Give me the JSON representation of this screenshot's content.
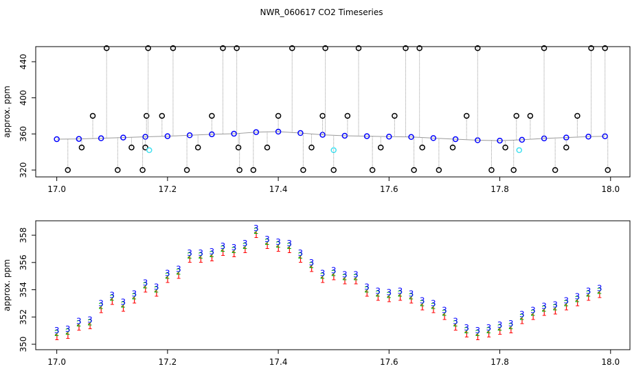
{
  "chart_data": [
    {
      "type": "scatter",
      "title": "NWR_060617  CO2 Timeseries",
      "y_label": "approx. ppm",
      "xlim": [
        16.962,
        18.035
      ],
      "xticks": [
        {
          "value": 17,
          "label": "17.0"
        },
        17.2,
        17.4,
        17.6,
        17.8,
        {
          "value": 18,
          "label": "18.0"
        }
      ],
      "ylim": [
        312.4,
        456.7
      ],
      "yticks": [
        320,
        360,
        400,
        440
      ],
      "series": [
        {
          "color": "#0000ff",
          "marker": "circle",
          "line": true,
          "x": [
            17.0,
            17.04,
            17.08,
            17.12,
            17.16,
            17.2,
            17.24,
            17.28,
            17.32,
            17.36,
            17.4,
            17.44,
            17.48,
            17.52,
            17.56,
            17.6,
            17.64,
            17.68,
            17.72,
            17.76,
            17.8,
            17.84,
            17.88,
            17.92,
            17.96,
            17.99
          ],
          "values": [
            354.2,
            354.5,
            355.2,
            356.0,
            356.8,
            357.5,
            358.5,
            359.6,
            360.2,
            362.0,
            362.5,
            361.0,
            359.0,
            358.0,
            357.5,
            357.0,
            356.6,
            355.4,
            354.2,
            353.0,
            352.6,
            353.5,
            355.0,
            356.0,
            357.0,
            357.4
          ]
        },
        {
          "color": "#000000",
          "marker": "circle",
          "drop_lines": true,
          "x": [
            17.02,
            17.045,
            17.065,
            17.09,
            17.11,
            17.135,
            17.155,
            17.16,
            17.162,
            17.165,
            17.19,
            17.21,
            17.235,
            17.255,
            17.28,
            17.3,
            17.325,
            17.328,
            17.33,
            17.355,
            17.38,
            17.4,
            17.425,
            17.445,
            17.46,
            17.48,
            17.485,
            17.5,
            17.525,
            17.545,
            17.57,
            17.585,
            17.61,
            17.63,
            17.645,
            17.655,
            17.66,
            17.69,
            17.715,
            17.74,
            17.76,
            17.785,
            17.81,
            17.825,
            17.83,
            17.855,
            17.88,
            17.9,
            17.92,
            17.94,
            17.965,
            17.99,
            17.995
          ],
          "values": [
            320,
            345,
            380,
            455,
            320,
            345,
            320,
            345,
            380,
            455,
            380,
            455,
            320,
            345,
            380,
            455,
            455,
            345,
            320,
            320,
            345,
            380,
            455,
            320,
            345,
            380,
            455,
            320,
            380,
            455,
            320,
            345,
            380,
            455,
            320,
            455,
            345,
            320,
            345,
            380,
            455,
            320,
            345,
            320,
            380,
            380,
            455,
            320,
            345,
            380,
            455,
            455,
            320
          ]
        },
        {
          "color": "#40e0f0",
          "marker": "circle",
          "x": [
            17.167,
            17.5,
            17.835
          ],
          "values": [
            342,
            342,
            342
          ]
        }
      ]
    },
    {
      "type": "scatter",
      "y_label": "approx. ppm",
      "xlim": [
        16.962,
        18.035
      ],
      "xticks": [
        {
          "value": 17,
          "label": "17.0"
        },
        17.2,
        17.4,
        17.6,
        17.8,
        {
          "value": 18,
          "label": "18.0"
        }
      ],
      "ylim": [
        349.6,
        359.06
      ],
      "yticks": [
        350,
        352,
        354,
        356,
        358
      ],
      "x": [
        17.0,
        17.02,
        17.04,
        17.06,
        17.08,
        17.1,
        17.12,
        17.14,
        17.16,
        17.18,
        17.2,
        17.22,
        17.24,
        17.26,
        17.28,
        17.3,
        17.32,
        17.34,
        17.36,
        17.38,
        17.4,
        17.42,
        17.44,
        17.46,
        17.48,
        17.5,
        17.52,
        17.54,
        17.56,
        17.58,
        17.6,
        17.62,
        17.64,
        17.66,
        17.68,
        17.7,
        17.72,
        17.74,
        17.76,
        17.78,
        17.8,
        17.82,
        17.84,
        17.86,
        17.88,
        17.9,
        17.92,
        17.94,
        17.96,
        17.98
      ],
      "series": [
        {
          "color": "#ff0000",
          "marker": "1",
          "values": [
            350.5,
            350.6,
            351.2,
            351.3,
            352.5,
            353.1,
            352.6,
            353.2,
            354.0,
            353.7,
            354.7,
            355.0,
            356.2,
            356.2,
            356.3,
            356.7,
            356.6,
            356.9,
            358.0,
            357.2,
            357.0,
            356.9,
            356.2,
            355.5,
            354.7,
            354.9,
            354.6,
            354.6,
            353.7,
            353.4,
            353.3,
            353.4,
            353.2,
            352.7,
            352.5,
            352.0,
            351.2,
            350.7,
            350.5,
            350.7,
            350.9,
            351.0,
            351.7,
            352.0,
            352.3,
            352.4,
            352.7,
            353.0,
            353.4,
            353.6
          ]
        },
        {
          "color": "#00b000",
          "marker": "2",
          "values": [
            350.8,
            350.9,
            351.5,
            351.6,
            352.8,
            353.4,
            352.9,
            353.5,
            354.3,
            354.0,
            355.0,
            355.3,
            356.5,
            356.5,
            356.6,
            357.0,
            356.9,
            357.2,
            358.3,
            357.5,
            357.3,
            357.2,
            356.5,
            355.8,
            355.0,
            355.2,
            354.9,
            354.9,
            354.0,
            353.7,
            353.6,
            353.7,
            353.5,
            353.0,
            352.8,
            352.3,
            351.5,
            351.0,
            350.8,
            351.0,
            351.2,
            351.3,
            352.0,
            352.3,
            352.6,
            352.7,
            353.0,
            353.3,
            353.7,
            353.9
          ]
        },
        {
          "color": "#0000ff",
          "marker": "3",
          "values": [
            351.0,
            351.1,
            351.7,
            351.8,
            353.0,
            353.6,
            353.1,
            353.7,
            354.5,
            354.2,
            355.2,
            355.5,
            356.7,
            356.7,
            356.8,
            357.2,
            357.1,
            357.4,
            358.5,
            357.7,
            357.5,
            357.4,
            356.7,
            356.0,
            355.2,
            355.4,
            355.1,
            355.1,
            354.2,
            353.9,
            353.8,
            353.9,
            353.7,
            353.2,
            353.0,
            352.5,
            351.7,
            351.2,
            351.0,
            351.2,
            351.4,
            351.5,
            352.2,
            352.5,
            352.8,
            352.9,
            353.2,
            353.5,
            353.9,
            354.1
          ]
        }
      ]
    }
  ]
}
